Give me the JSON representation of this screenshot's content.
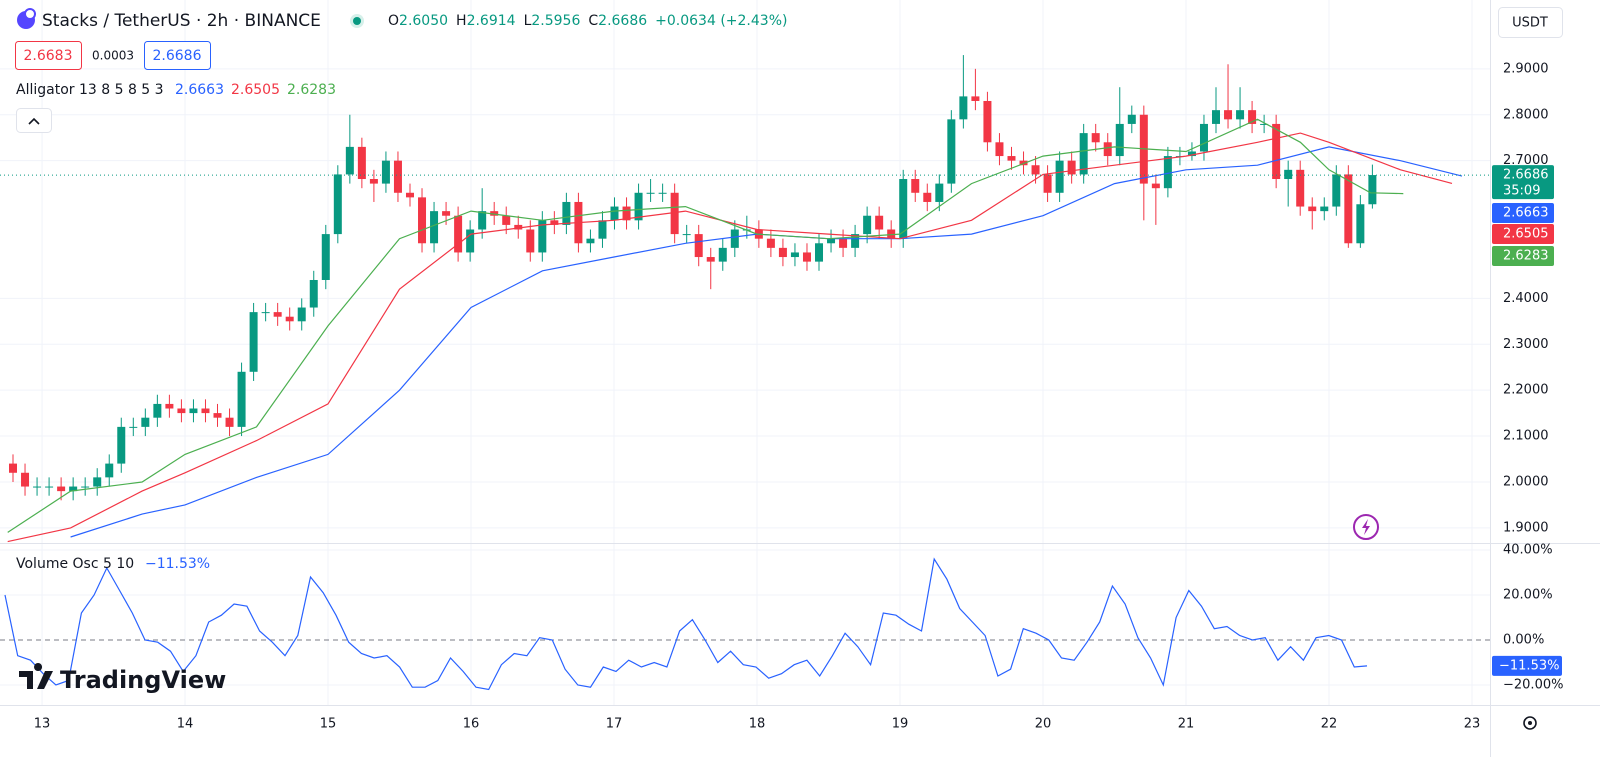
{
  "header": {
    "symbol": "Stacks / TetherUS · 2h · BINANCE",
    "ohlc": [
      {
        "label": "O",
        "value": "2.6050"
      },
      {
        "label": "H",
        "value": "2.6914"
      },
      {
        "label": "L",
        "value": "2.5956"
      },
      {
        "label": "C",
        "value": "2.6686"
      }
    ],
    "change": "+0.0634 (+2.43%)",
    "bid": "2.6683",
    "spread": "0.0003",
    "ask": "2.6686",
    "currency": "USDT",
    "countdown": "35:09",
    "brand": "TradingView"
  },
  "indicators": {
    "alligator": "Alligator 13 8 5 8 5 3",
    "volume_osc": "Volume Osc 5 10",
    "volume_osc_value": "−11.53%"
  },
  "chart_data": [
    {
      "type": "candlestick",
      "up_color": "#089981",
      "down_color": "#f23645",
      "xlim": [
        12.706,
        23.126
      ],
      "xticks": [
        13,
        14,
        15,
        16,
        17,
        18,
        19,
        20,
        21,
        22,
        23
      ],
      "ylim": [
        1.867,
        3.05
      ],
      "yticks": [
        {
          "value": 2.9,
          "label": "2.9000"
        },
        {
          "value": 2.8,
          "label": "2.8000"
        },
        {
          "value": 2.7,
          "label": "2.7000"
        },
        {
          "value": 2.4,
          "label": "2.4000"
        },
        {
          "value": 2.3,
          "label": "2.3000"
        },
        {
          "value": 2.2,
          "label": "2.2000"
        },
        {
          "value": 2.1,
          "label": "2.1000"
        },
        {
          "value": 2,
          "label": "2.0000"
        },
        {
          "value": 1.9,
          "label": "1.9000"
        }
      ],
      "grid": true,
      "open": [
        2.04,
        2.02,
        1.99,
        1.99,
        1.99,
        1.98,
        1.99,
        1.99,
        2.01,
        2.04,
        2.12,
        2.12,
        2.14,
        2.17,
        2.16,
        2.15,
        2.16,
        2.15,
        2.14,
        2.12,
        2.24,
        2.37,
        2.37,
        2.36,
        2.35,
        2.38,
        2.44,
        2.54,
        2.67,
        2.73,
        2.66,
        2.65,
        2.7,
        2.63,
        2.62,
        2.52,
        2.59,
        2.58,
        2.5,
        2.55,
        2.59,
        2.58,
        2.56,
        2.55,
        2.5,
        2.57,
        2.56,
        2.61,
        2.52,
        2.53,
        2.57,
        2.6,
        2.57,
        2.63,
        2.63,
        2.63,
        2.54,
        2.54,
        2.49,
        2.48,
        2.51,
        2.55,
        2.55,
        2.53,
        2.51,
        2.49,
        2.5,
        2.48,
        2.52,
        2.53,
        2.51,
        2.54,
        2.58,
        2.55,
        2.53,
        2.66,
        2.63,
        2.61,
        2.65,
        2.79,
        2.84,
        2.83,
        2.74,
        2.71,
        2.7,
        2.69,
        2.67,
        2.63,
        2.7,
        2.67,
        2.76,
        2.74,
        2.71,
        2.78,
        2.8,
        2.65,
        2.64,
        2.71,
        2.71,
        2.72,
        2.78,
        2.81,
        2.79,
        2.81,
        2.78,
        2.78,
        2.66,
        2.68,
        2.6,
        2.59,
        2.6,
        2.67,
        2.52,
        2.605
      ],
      "high": [
        2.06,
        2.04,
        2.01,
        2.01,
        2.01,
        2.01,
        2.01,
        2.03,
        2.06,
        2.14,
        2.14,
        2.16,
        2.19,
        2.19,
        2.18,
        2.18,
        2.18,
        2.17,
        2.16,
        2.26,
        2.39,
        2.39,
        2.39,
        2.38,
        2.4,
        2.46,
        2.56,
        2.69,
        2.8,
        2.75,
        2.68,
        2.72,
        2.72,
        2.65,
        2.64,
        2.61,
        2.61,
        2.6,
        2.57,
        2.64,
        2.61,
        2.6,
        2.58,
        2.57,
        2.59,
        2.59,
        2.63,
        2.63,
        2.55,
        2.59,
        2.62,
        2.62,
        2.65,
        2.66,
        2.65,
        2.65,
        2.56,
        2.56,
        2.51,
        2.53,
        2.57,
        2.58,
        2.57,
        2.55,
        2.53,
        2.52,
        2.52,
        2.54,
        2.55,
        2.55,
        2.56,
        2.6,
        2.6,
        2.57,
        2.68,
        2.68,
        2.65,
        2.67,
        2.81,
        2.93,
        2.9,
        2.85,
        2.76,
        2.73,
        2.72,
        2.71,
        2.69,
        2.72,
        2.72,
        2.78,
        2.78,
        2.76,
        2.86,
        2.82,
        2.82,
        2.67,
        2.73,
        2.73,
        2.74,
        2.8,
        2.86,
        2.91,
        2.86,
        2.83,
        2.8,
        2.8,
        2.7,
        2.7,
        2.62,
        2.62,
        2.69,
        2.69,
        2.625,
        2.6914
      ],
      "low": [
        2.0,
        1.97,
        1.97,
        1.97,
        1.96,
        1.96,
        1.97,
        1.97,
        1.99,
        2.02,
        2.1,
        2.1,
        2.12,
        2.14,
        2.13,
        2.13,
        2.13,
        2.12,
        2.1,
        2.1,
        2.22,
        2.35,
        2.34,
        2.33,
        2.33,
        2.36,
        2.42,
        2.52,
        2.65,
        2.64,
        2.61,
        2.63,
        2.61,
        2.6,
        2.5,
        2.5,
        2.56,
        2.48,
        2.48,
        2.53,
        2.56,
        2.54,
        2.53,
        2.48,
        2.48,
        2.54,
        2.54,
        2.5,
        2.5,
        2.51,
        2.55,
        2.55,
        2.55,
        2.61,
        2.61,
        2.52,
        2.52,
        2.47,
        2.42,
        2.46,
        2.49,
        2.53,
        2.51,
        2.49,
        2.47,
        2.47,
        2.46,
        2.46,
        2.5,
        2.49,
        2.49,
        2.52,
        2.53,
        2.51,
        2.51,
        2.61,
        2.59,
        2.59,
        2.63,
        2.77,
        2.81,
        2.72,
        2.69,
        2.68,
        2.67,
        2.65,
        2.61,
        2.61,
        2.65,
        2.65,
        2.72,
        2.69,
        2.69,
        2.76,
        2.57,
        2.56,
        2.62,
        2.69,
        2.7,
        2.7,
        2.76,
        2.77,
        2.77,
        2.76,
        2.76,
        2.64,
        2.6,
        2.58,
        2.55,
        2.57,
        2.58,
        2.51,
        2.51,
        2.5956
      ],
      "close": [
        2.02,
        1.99,
        1.99,
        1.99,
        1.98,
        1.99,
        1.99,
        2.01,
        2.04,
        2.12,
        2.12,
        2.14,
        2.17,
        2.16,
        2.15,
        2.16,
        2.15,
        2.14,
        2.12,
        2.24,
        2.37,
        2.37,
        2.36,
        2.35,
        2.38,
        2.44,
        2.54,
        2.67,
        2.73,
        2.66,
        2.65,
        2.7,
        2.63,
        2.62,
        2.52,
        2.59,
        2.58,
        2.5,
        2.55,
        2.59,
        2.58,
        2.56,
        2.55,
        2.5,
        2.57,
        2.56,
        2.61,
        2.52,
        2.53,
        2.57,
        2.6,
        2.57,
        2.63,
        2.63,
        2.63,
        2.54,
        2.54,
        2.49,
        2.48,
        2.51,
        2.55,
        2.55,
        2.53,
        2.51,
        2.49,
        2.5,
        2.48,
        2.52,
        2.53,
        2.51,
        2.54,
        2.58,
        2.55,
        2.53,
        2.66,
        2.63,
        2.61,
        2.65,
        2.79,
        2.84,
        2.83,
        2.74,
        2.71,
        2.7,
        2.69,
        2.67,
        2.63,
        2.7,
        2.67,
        2.76,
        2.74,
        2.71,
        2.78,
        2.8,
        2.65,
        2.64,
        2.71,
        2.71,
        2.72,
        2.78,
        2.81,
        2.79,
        2.81,
        2.78,
        2.78,
        2.66,
        2.68,
        2.6,
        2.59,
        2.6,
        2.67,
        2.52,
        2.605,
        2.6686
      ],
      "series": [
        {
          "color": "#2962ff",
          "x": [
            13.2,
            13.7,
            14,
            14.5,
            15,
            15.5,
            16,
            16.5,
            17,
            17.5,
            18,
            18.5,
            19,
            19.5,
            20,
            20.5,
            21,
            21.5,
            22,
            22.5,
            22.93
          ],
          "values": [
            1.88,
            1.93,
            1.95,
            2.01,
            2.06,
            2.2,
            2.38,
            2.46,
            2.49,
            2.52,
            2.54,
            2.53,
            2.53,
            2.54,
            2.58,
            2.65,
            2.68,
            2.69,
            2.73,
            2.7,
            2.6663
          ]
        },
        {
          "color": "#f23645",
          "x": [
            12.76,
            13.2,
            13.7,
            14,
            14.5,
            15,
            15.5,
            16,
            16.5,
            17,
            17.5,
            18,
            18.5,
            19,
            19.5,
            20,
            20.5,
            21,
            21.5,
            21.8,
            22,
            22.5,
            22.86
          ],
          "values": [
            1.87,
            1.9,
            1.98,
            2.02,
            2.09,
            2.17,
            2.42,
            2.54,
            2.56,
            2.57,
            2.59,
            2.55,
            2.54,
            2.53,
            2.57,
            2.67,
            2.69,
            2.71,
            2.74,
            2.76,
            2.74,
            2.68,
            2.6505
          ]
        },
        {
          "color": "#4caf50",
          "x": [
            12.76,
            13.2,
            13.7,
            14,
            14.5,
            15,
            15.5,
            16,
            16.5,
            17,
            17.5,
            18,
            18.5,
            19,
            19.5,
            20,
            20.5,
            21,
            21.5,
            21.8,
            22,
            22.29,
            22.52
          ],
          "values": [
            1.89,
            1.98,
            2,
            2.06,
            2.12,
            2.34,
            2.53,
            2.59,
            2.57,
            2.59,
            2.6,
            2.54,
            2.53,
            2.54,
            2.65,
            2.71,
            2.73,
            2.72,
            2.79,
            2.74,
            2.68,
            2.63,
            2.6283
          ]
        }
      ]
    },
    {
      "type": "line",
      "color": "#2962ff",
      "ylim": [
        -28.9,
        43.1
      ],
      "yticks": [
        {
          "value": 40,
          "label": "40.00%"
        },
        {
          "value": 20,
          "label": "20.00%"
        },
        {
          "value": 0,
          "label": "0.00%"
        },
        {
          "value": -20,
          "label": "−20.00%"
        }
      ],
      "values": [
        20,
        -7,
        -9,
        -15,
        -20,
        -18,
        12,
        20,
        32,
        22,
        12,
        0,
        -1,
        -5,
        -14,
        -7,
        8,
        11,
        16,
        15,
        4,
        -1,
        -7,
        2,
        28,
        21,
        11,
        -1,
        -6,
        -8,
        -7,
        -12,
        -21,
        -21,
        -18,
        -8,
        -14,
        -21,
        -22,
        -11,
        -6,
        -7,
        1,
        0,
        -13,
        -20,
        -21,
        -12,
        -14,
        -9,
        -12,
        -10,
        -12,
        4,
        9,
        0,
        -10,
        -5,
        -11,
        -12,
        -17,
        -15,
        -11,
        -9,
        -16,
        -7,
        3,
        -3,
        -11,
        12,
        11,
        7,
        4,
        36,
        27,
        14,
        8,
        2,
        -16,
        -13,
        5,
        3,
        0,
        -8,
        -9,
        -1,
        8,
        24,
        16,
        1,
        -8,
        -20,
        10,
        22,
        15,
        5,
        6,
        2,
        0,
        1,
        -9,
        -3,
        -9,
        1,
        2,
        0,
        -12,
        -11.53
      ]
    }
  ]
}
